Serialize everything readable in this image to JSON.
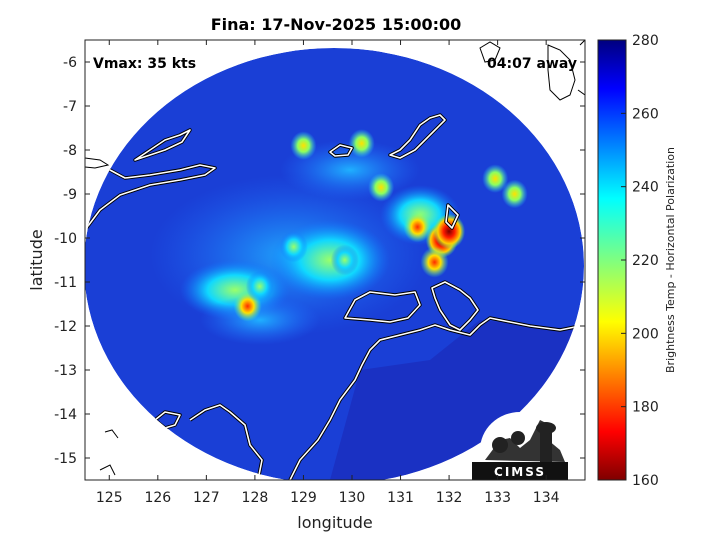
{
  "title": "Fina: 17-Nov-2025 15:00:00",
  "vmax_label": "Vmax: 35 kts",
  "away_label": "04:07 away",
  "xlabel": "longitude",
  "ylabel": "latitude",
  "colorbar_label": "Brightness Temp - Horizontal Polarization",
  "logo_text": "CIMSS",
  "colors": {
    "background_disk": "#1a3fd6",
    "coast": "#ffffff",
    "outline": "#000000"
  },
  "chart_data": {
    "type": "heatmap",
    "xlim": [
      124.5,
      134.8
    ],
    "ylim": [
      -15.5,
      -5.5
    ],
    "x_ticks": [
      "125",
      "126",
      "127",
      "128",
      "129",
      "130",
      "131",
      "132",
      "133",
      "134"
    ],
    "x_tick_values": [
      125,
      126,
      127,
      128,
      129,
      130,
      131,
      132,
      133,
      134
    ],
    "y_ticks": [
      "-6",
      "-7",
      "-8",
      "-9",
      "-10",
      "-11",
      "-12",
      "-13",
      "-14",
      "-15"
    ],
    "y_tick_values": [
      -6,
      -7,
      -8,
      -9,
      -10,
      -11,
      -12,
      -13,
      -14,
      -15
    ],
    "colorbar": {
      "range": [
        160,
        280
      ],
      "ticks": [
        "160",
        "180",
        "200",
        "220",
        "240",
        "260",
        "280"
      ],
      "tick_values": [
        160,
        180,
        200,
        220,
        240,
        260,
        280
      ],
      "colormap": "jet"
    },
    "swath_center": [
      129.7,
      -10.4
    ],
    "swath_radius_deg": 4.9,
    "features": [
      {
        "name": "cold core",
        "lon": 131.85,
        "lat": -10.05,
        "tb": 175
      },
      {
        "name": "cold core",
        "lon": 132.0,
        "lat": -9.85,
        "tb": 180
      },
      {
        "name": "cold core",
        "lon": 131.7,
        "lat": -10.55,
        "tb": 190
      },
      {
        "name": "cold core",
        "lon": 131.35,
        "lat": -9.75,
        "tb": 200
      },
      {
        "name": "cold core",
        "lon": 127.85,
        "lat": -11.55,
        "tb": 195
      },
      {
        "name": "cold spot",
        "lon": 128.1,
        "lat": -11.1,
        "tb": 225
      },
      {
        "name": "cold spot",
        "lon": 129.0,
        "lat": -7.9,
        "tb": 215
      },
      {
        "name": "cold spot",
        "lon": 130.2,
        "lat": -7.85,
        "tb": 215
      },
      {
        "name": "cold spot",
        "lon": 130.6,
        "lat": -8.85,
        "tb": 215
      },
      {
        "name": "cold spot",
        "lon": 132.95,
        "lat": -8.65,
        "tb": 205
      },
      {
        "name": "cold spot",
        "lon": 133.35,
        "lat": -9.0,
        "tb": 210
      },
      {
        "name": "cold spot",
        "lon": 129.85,
        "lat": -10.5,
        "tb": 220
      },
      {
        "name": "cold spot",
        "lon": 128.8,
        "lat": -10.2,
        "tb": 225
      }
    ]
  }
}
